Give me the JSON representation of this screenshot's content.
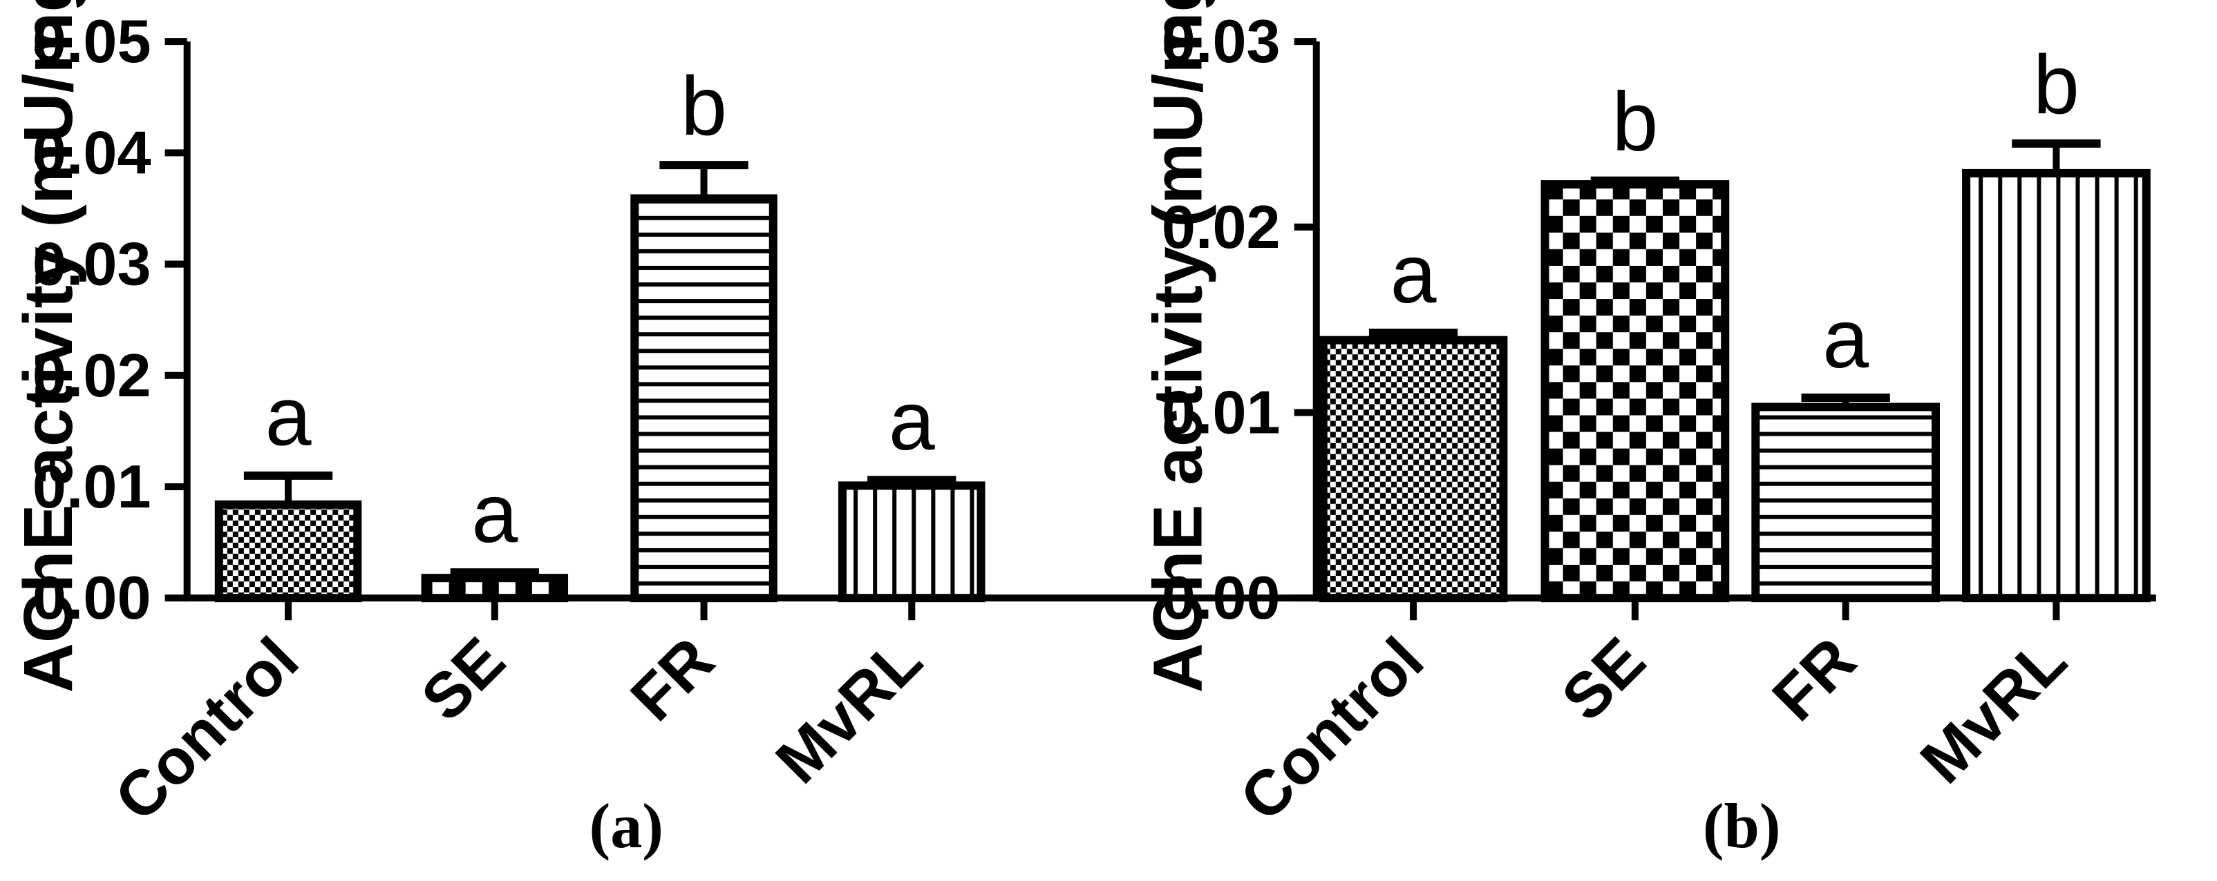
{
  "chart_data": [
    {
      "type": "bar",
      "panel_label": "(a)",
      "categories": [
        "Control",
        "SE",
        "FR",
        "MvRL"
      ],
      "values": [
        0.0084,
        0.0018,
        0.0359,
        0.0101
      ],
      "errors": [
        0.0026,
        0.0005,
        0.003,
        0.0005
      ],
      "significance": [
        "a",
        "a",
        "b",
        "a"
      ],
      "patterns": [
        "pat-dots",
        "pat-check",
        "pat-hlines",
        "pat-vlines"
      ],
      "ylabel": "AChE activity (mU/mg)",
      "ylim": [
        0,
        0.05
      ],
      "yticks": [
        0.0,
        0.01,
        0.02,
        0.03,
        0.04,
        0.05
      ],
      "ytick_labels": [
        "0.00",
        "0.01",
        "0.02",
        "0.03",
        "0.04",
        "0.05"
      ]
    },
    {
      "type": "bar",
      "panel_label": "(b)",
      "categories": [
        "Control",
        "SE",
        "FR",
        "MvRL"
      ],
      "values": [
        0.0139,
        0.0223,
        0.0103,
        0.0229
      ],
      "errors": [
        0.0004,
        0.0002,
        0.0005,
        0.0016
      ],
      "significance": [
        "a",
        "b",
        "a",
        "b"
      ],
      "patterns": [
        "pat-dots",
        "pat-check",
        "pat-hlines",
        "pat-vlines"
      ],
      "ylabel": "AChE activity (mU/mg)",
      "ylim": [
        0,
        0.03
      ],
      "yticks": [
        0.0,
        0.01,
        0.02,
        0.03
      ],
      "ytick_labels": [
        "0.00",
        "0.01",
        "0.02",
        "0.03"
      ]
    }
  ]
}
